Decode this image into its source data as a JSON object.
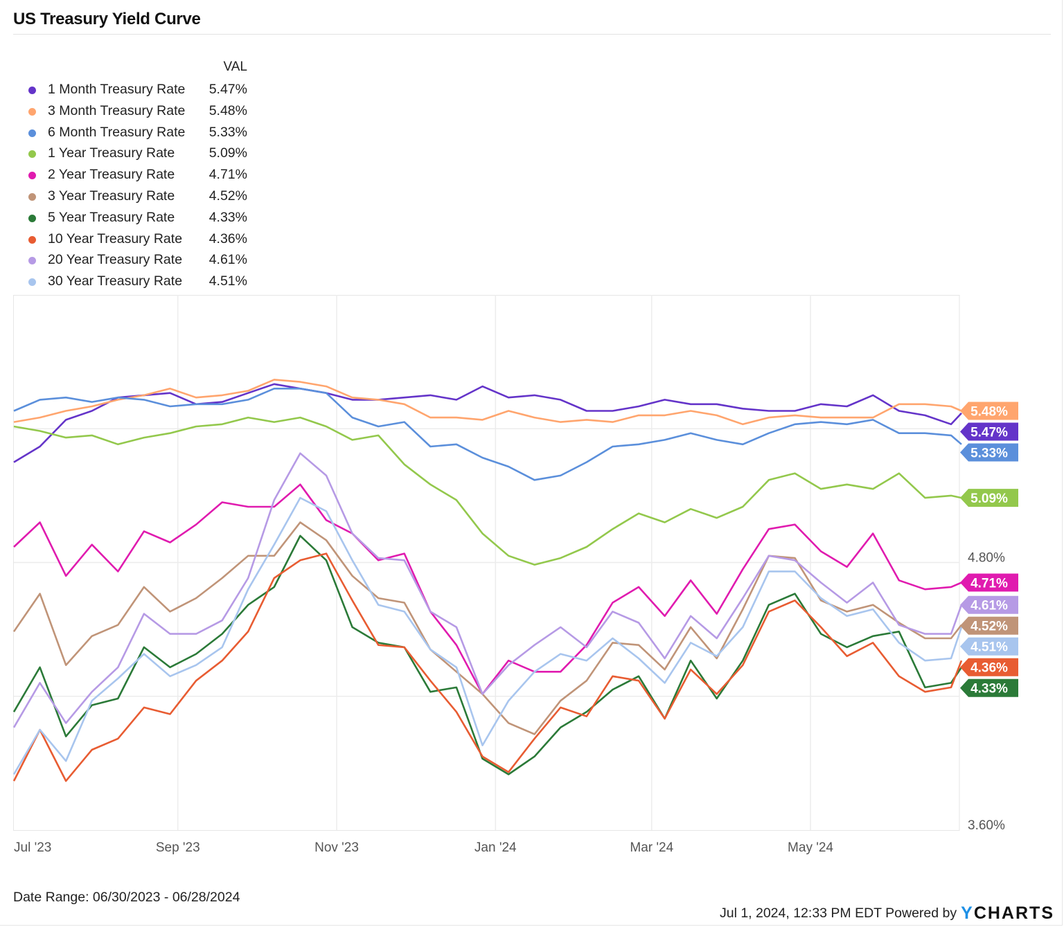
{
  "title": "US Treasury Yield Curve",
  "legend": {
    "header": "VAL"
  },
  "footer": {
    "date_range": "Date Range: 06/30/2023 - 06/28/2024",
    "timestamp": "Jul 1, 2024, 12:33 PM EDT Powered by",
    "logo_y": "Y",
    "logo_rest": "CHARTS"
  },
  "chart_data": {
    "type": "line",
    "title": "US Treasury Yield Curve",
    "xlabel": "",
    "ylabel": "",
    "ylim": [
      3.6,
      6.0
    ],
    "y_ticks": [
      {
        "value": 4.8,
        "label": "4.80%"
      },
      {
        "value": 3.6,
        "label": "3.60%"
      }
    ],
    "y_gridlines": [
      5.4,
      4.8,
      4.2
    ],
    "x_start": "2023-06-30",
    "x_end": "2024-06-28",
    "x_ticks": [
      {
        "date": "2023-07-01",
        "label": "Jul '23"
      },
      {
        "date": "2023-09-01",
        "label": "Sep '23"
      },
      {
        "date": "2023-11-01",
        "label": "Nov '23"
      },
      {
        "date": "2024-01-01",
        "label": "Jan '24"
      },
      {
        "date": "2024-03-01",
        "label": "Mar '24"
      },
      {
        "date": "2024-05-01",
        "label": "May '24"
      }
    ],
    "grid": true,
    "legend_position": "top-left",
    "x": [
      "2023-06-30",
      "2023-07-10",
      "2023-07-20",
      "2023-07-30",
      "2023-08-09",
      "2023-08-19",
      "2023-08-29",
      "2023-09-08",
      "2023-09-18",
      "2023-09-28",
      "2023-10-08",
      "2023-10-18",
      "2023-10-28",
      "2023-11-07",
      "2023-11-17",
      "2023-11-27",
      "2023-12-07",
      "2023-12-17",
      "2023-12-27",
      "2024-01-06",
      "2024-01-16",
      "2024-01-26",
      "2024-02-05",
      "2024-02-15",
      "2024-02-25",
      "2024-03-06",
      "2024-03-16",
      "2024-03-26",
      "2024-04-05",
      "2024-04-15",
      "2024-04-25",
      "2024-05-05",
      "2024-05-15",
      "2024-05-25",
      "2024-06-04",
      "2024-06-14",
      "2024-06-24",
      "2024-06-28"
    ],
    "series": [
      {
        "name": "1 Month Treasury Rate",
        "last": "5.47%",
        "color": "#6434c9",
        "values": [
          5.25,
          5.32,
          5.44,
          5.48,
          5.54,
          5.55,
          5.56,
          5.51,
          5.52,
          5.56,
          5.6,
          5.58,
          5.56,
          5.53,
          5.53,
          5.54,
          5.55,
          5.53,
          5.59,
          5.54,
          5.55,
          5.53,
          5.48,
          5.48,
          5.5,
          5.53,
          5.51,
          5.51,
          5.49,
          5.48,
          5.48,
          5.51,
          5.5,
          5.55,
          5.48,
          5.46,
          5.42,
          5.47
        ]
      },
      {
        "name": "3 Month Treasury Rate",
        "last": "5.48%",
        "color": "#ffa56e",
        "values": [
          5.43,
          5.45,
          5.48,
          5.5,
          5.53,
          5.55,
          5.58,
          5.54,
          5.55,
          5.57,
          5.62,
          5.61,
          5.59,
          5.54,
          5.53,
          5.51,
          5.45,
          5.45,
          5.44,
          5.48,
          5.45,
          5.43,
          5.44,
          5.43,
          5.46,
          5.46,
          5.48,
          5.46,
          5.42,
          5.45,
          5.46,
          5.45,
          5.45,
          5.45,
          5.51,
          5.51,
          5.5,
          5.48
        ]
      },
      {
        "name": "6 Month Treasury Rate",
        "last": "5.33%",
        "color": "#5b8fdb",
        "values": [
          5.48,
          5.53,
          5.54,
          5.52,
          5.54,
          5.53,
          5.5,
          5.51,
          5.51,
          5.53,
          5.58,
          5.58,
          5.56,
          5.45,
          5.41,
          5.43,
          5.32,
          5.33,
          5.27,
          5.23,
          5.17,
          5.19,
          5.25,
          5.32,
          5.33,
          5.35,
          5.38,
          5.35,
          5.33,
          5.38,
          5.42,
          5.43,
          5.42,
          5.44,
          5.38,
          5.38,
          5.37,
          5.33
        ]
      },
      {
        "name": "1 Year Treasury Rate",
        "last": "5.09%",
        "color": "#93c84c",
        "values": [
          5.41,
          5.39,
          5.36,
          5.37,
          5.33,
          5.36,
          5.38,
          5.41,
          5.42,
          5.45,
          5.43,
          5.45,
          5.41,
          5.35,
          5.37,
          5.24,
          5.15,
          5.08,
          4.93,
          4.83,
          4.79,
          4.82,
          4.87,
          4.95,
          5.02,
          4.98,
          5.04,
          5.0,
          5.05,
          5.17,
          5.2,
          5.13,
          5.15,
          5.13,
          5.2,
          5.09,
          5.1,
          5.09
        ]
      },
      {
        "name": "2 Year Treasury Rate",
        "last": "4.71%",
        "color": "#e01baf",
        "values": [
          4.87,
          4.98,
          4.74,
          4.88,
          4.76,
          4.94,
          4.89,
          4.97,
          5.07,
          5.05,
          5.05,
          5.15,
          4.99,
          4.93,
          4.81,
          4.84,
          4.58,
          4.43,
          4.21,
          4.36,
          4.31,
          4.31,
          4.43,
          4.62,
          4.69,
          4.56,
          4.72,
          4.57,
          4.77,
          4.95,
          4.97,
          4.85,
          4.78,
          4.93,
          4.72,
          4.68,
          4.69,
          4.71
        ]
      },
      {
        "name": "3 Year Treasury Rate",
        "last": "4.52%",
        "color": "#c09478",
        "values": [
          4.49,
          4.66,
          4.34,
          4.47,
          4.52,
          4.69,
          4.58,
          4.64,
          4.73,
          4.83,
          4.83,
          4.98,
          4.9,
          4.74,
          4.64,
          4.62,
          4.41,
          4.31,
          4.21,
          4.08,
          4.03,
          4.18,
          4.27,
          4.44,
          4.43,
          4.32,
          4.51,
          4.37,
          4.59,
          4.83,
          4.82,
          4.63,
          4.58,
          4.61,
          4.53,
          4.46,
          4.46,
          4.52
        ]
      },
      {
        "name": "5 Year Treasury Rate",
        "last": "4.33%",
        "color": "#2b7a38",
        "values": [
          4.13,
          4.33,
          4.02,
          4.16,
          4.19,
          4.42,
          4.33,
          4.39,
          4.48,
          4.61,
          4.69,
          4.92,
          4.81,
          4.51,
          4.44,
          4.42,
          4.22,
          4.24,
          3.92,
          3.85,
          3.93,
          4.06,
          4.13,
          4.23,
          4.29,
          4.1,
          4.36,
          4.19,
          4.36,
          4.61,
          4.66,
          4.48,
          4.42,
          4.47,
          4.49,
          4.24,
          4.26,
          4.33
        ]
      },
      {
        "name": "10 Year Treasury Rate",
        "last": "4.36%",
        "color": "#e85c32",
        "values": [
          3.82,
          4.05,
          3.82,
          3.96,
          4.01,
          4.15,
          4.12,
          4.27,
          4.36,
          4.49,
          4.73,
          4.81,
          4.84,
          4.63,
          4.43,
          4.42,
          4.27,
          4.13,
          3.93,
          3.86,
          4.01,
          4.15,
          4.11,
          4.29,
          4.27,
          4.1,
          4.32,
          4.21,
          4.34,
          4.58,
          4.63,
          4.51,
          4.38,
          4.44,
          4.29,
          4.22,
          4.24,
          4.36
        ]
      },
      {
        "name": "20 Year Treasury Rate",
        "last": "4.61%",
        "color": "#b69ae5",
        "values": [
          4.06,
          4.26,
          4.08,
          4.22,
          4.33,
          4.57,
          4.48,
          4.48,
          4.54,
          4.73,
          5.08,
          5.29,
          5.19,
          4.93,
          4.82,
          4.81,
          4.58,
          4.51,
          4.21,
          4.34,
          4.43,
          4.51,
          4.42,
          4.58,
          4.53,
          4.37,
          4.56,
          4.46,
          4.64,
          4.83,
          4.81,
          4.71,
          4.62,
          4.71,
          4.52,
          4.48,
          4.48,
          4.61
        ]
      },
      {
        "name": "30 Year Treasury Rate",
        "last": "4.51%",
        "color": "#a8c5ee",
        "values": [
          3.85,
          4.05,
          3.91,
          4.18,
          4.28,
          4.39,
          4.29,
          4.34,
          4.42,
          4.68,
          4.88,
          5.09,
          5.03,
          4.81,
          4.61,
          4.58,
          4.41,
          4.33,
          3.98,
          4.18,
          4.31,
          4.39,
          4.36,
          4.46,
          4.37,
          4.26,
          4.44,
          4.38,
          4.51,
          4.76,
          4.76,
          4.64,
          4.56,
          4.59,
          4.44,
          4.36,
          4.37,
          4.51
        ]
      }
    ]
  }
}
